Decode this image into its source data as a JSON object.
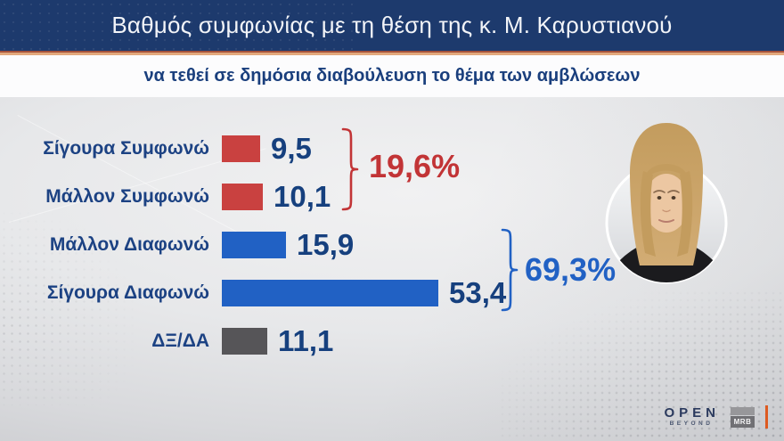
{
  "header": {
    "title": "Βαθμός συμφωνίας με τη θέση της κ. Μ. Καρυστιανού"
  },
  "subtitle": {
    "text": "να τεθεί σε δημόσια διαβούλευση το θέμα των αμβλώσεων"
  },
  "chart_data": {
    "type": "bar",
    "orientation": "horizontal",
    "title": "Βαθμός συμφωνίας με τη θέση της κ. Μ. Καρυστιανού",
    "subtitle": "να τεθεί σε δημόσια διαβούλευση το θέμα των αμβλώσεων",
    "categories": [
      "Σίγουρα Συμφωνώ",
      "Μάλλον Συμφωνώ",
      "Μάλλον Διαφωνώ",
      "Σίγουρα Διαφωνώ",
      "ΔΞ/ΔΑ"
    ],
    "values": [
      9.5,
      10.1,
      15.9,
      53.4,
      11.1
    ],
    "value_labels": [
      "9,5",
      "10,1",
      "15,9",
      "53,4",
      "11,1"
    ],
    "bar_colors": [
      "#c94140",
      "#c94140",
      "#2161c4",
      "#2161c4",
      "#565558"
    ],
    "groups": [
      {
        "label": "19,6%",
        "color": "#c23436",
        "spans": [
          "Σίγουρα Συμφωνώ",
          "Μάλλον Συμφωνώ"
        ],
        "value": 19.6
      },
      {
        "label": "69,3%",
        "color": "#2161c4",
        "spans": [
          "Μάλλον Διαφωνώ",
          "Σίγουρα Διαφωνώ"
        ],
        "value": 69.3
      }
    ],
    "xlim": [
      0,
      60
    ],
    "grid": false,
    "legend": "none"
  },
  "portrait": {
    "subject": "Μ. Καρυστιανού"
  },
  "branding": {
    "open_label": "OPEN",
    "open_sub": "BEYOND",
    "mrb_label": "MRB",
    "accent_color": "#dd5a21"
  },
  "colors": {
    "header_bg": "#1d3a6d",
    "divider_dark": "#a5523c",
    "divider_light": "#e2a87c",
    "subtitle_text": "#1a3f7d",
    "value_text": "#16407e",
    "category_text": "#1c4283",
    "red_bar": "#c94140",
    "blue_bar": "#2161c4",
    "gray_bar": "#565558"
  }
}
